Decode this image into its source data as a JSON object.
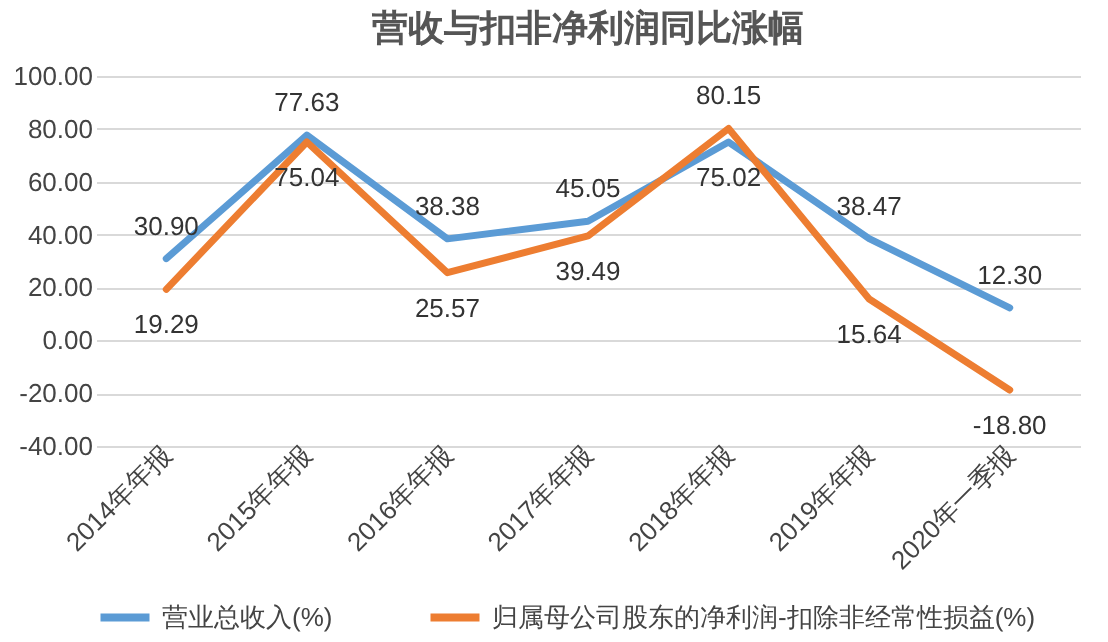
{
  "chart_data": {
    "type": "line",
    "title": "营收与扣非净利润同比涨幅",
    "categories": [
      "2014年年报",
      "2015年年报",
      "2016年年报",
      "2017年年报",
      "2018年年报",
      "2019年年报",
      "2020年一季报"
    ],
    "series": [
      {
        "name": "营业总收入(%)",
        "color": "#5b9bd5",
        "values": [
          30.9,
          77.63,
          38.38,
          45.05,
          75.02,
          38.47,
          12.3
        ],
        "value_labels": [
          "30.90",
          "77.63",
          "38.38",
          "45.05",
          "75.02",
          "38.47",
          "12.30"
        ]
      },
      {
        "name": "归属母公司股东的净利润-扣除非经常性损益(%)",
        "color": "#ed7d31",
        "values": [
          19.29,
          75.04,
          25.57,
          39.49,
          80.15,
          15.64,
          -18.8
        ],
        "value_labels": [
          "19.29",
          "75.04",
          "25.57",
          "39.49",
          "80.15",
          "15.64",
          "-18.80"
        ]
      }
    ],
    "ylim": [
      -40,
      100
    ],
    "yticks": [
      {
        "value": -40,
        "label": "-40.00"
      },
      {
        "value": -20,
        "label": "-20.00"
      },
      {
        "value": 0,
        "label": "0.00"
      },
      {
        "value": 20,
        "label": "20.00"
      },
      {
        "value": 40,
        "label": "40.00"
      },
      {
        "value": 60,
        "label": "60.00"
      },
      {
        "value": 80,
        "label": "80.00"
      },
      {
        "value": 100,
        "label": "100.00"
      }
    ],
    "grid": "y",
    "legend": "bottom",
    "marker": "none",
    "line_style": "solid"
  }
}
